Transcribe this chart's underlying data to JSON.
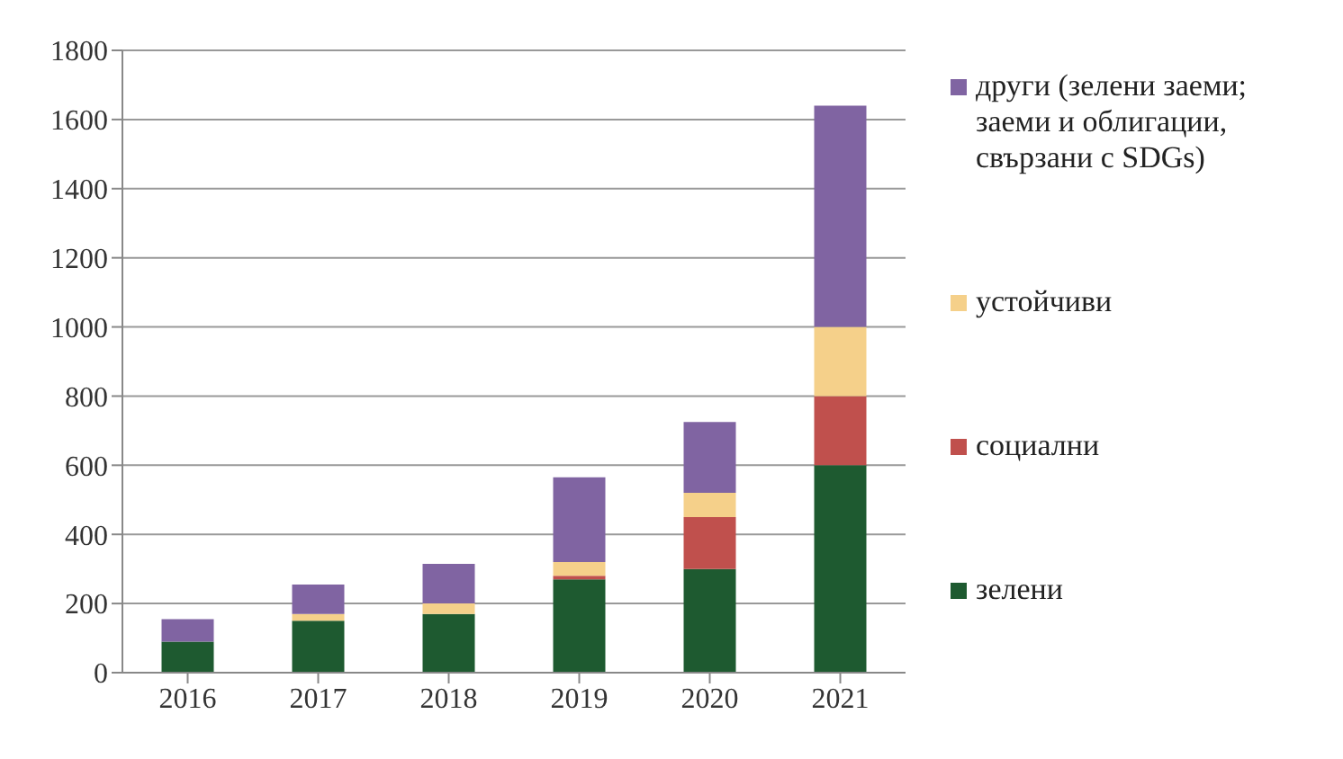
{
  "chart_data": {
    "type": "bar",
    "stacked": true,
    "categories": [
      "2016",
      "2017",
      "2018",
      "2019",
      "2020",
      "2021"
    ],
    "series": [
      {
        "name": "зелени",
        "color": "#1e5a30",
        "values": [
          90,
          150,
          170,
          270,
          300,
          600
        ]
      },
      {
        "name": "социални",
        "color": "#c0504d",
        "values": [
          0,
          0,
          0,
          10,
          150,
          200
        ]
      },
      {
        "name": "устойчиви",
        "color": "#f5d08a",
        "values": [
          0,
          20,
          30,
          40,
          70,
          200
        ]
      },
      {
        "name": "други (зелени заеми; заеми и облигации, свързани с SDGs)",
        "color": "#8064a2",
        "values": [
          65,
          85,
          115,
          245,
          205,
          640
        ]
      }
    ],
    "ylim": [
      0,
      1800
    ],
    "yticks": [
      0,
      200,
      400,
      600,
      800,
      1000,
      1200,
      1400,
      1600,
      1800
    ],
    "grid": "y",
    "legend": "right"
  }
}
